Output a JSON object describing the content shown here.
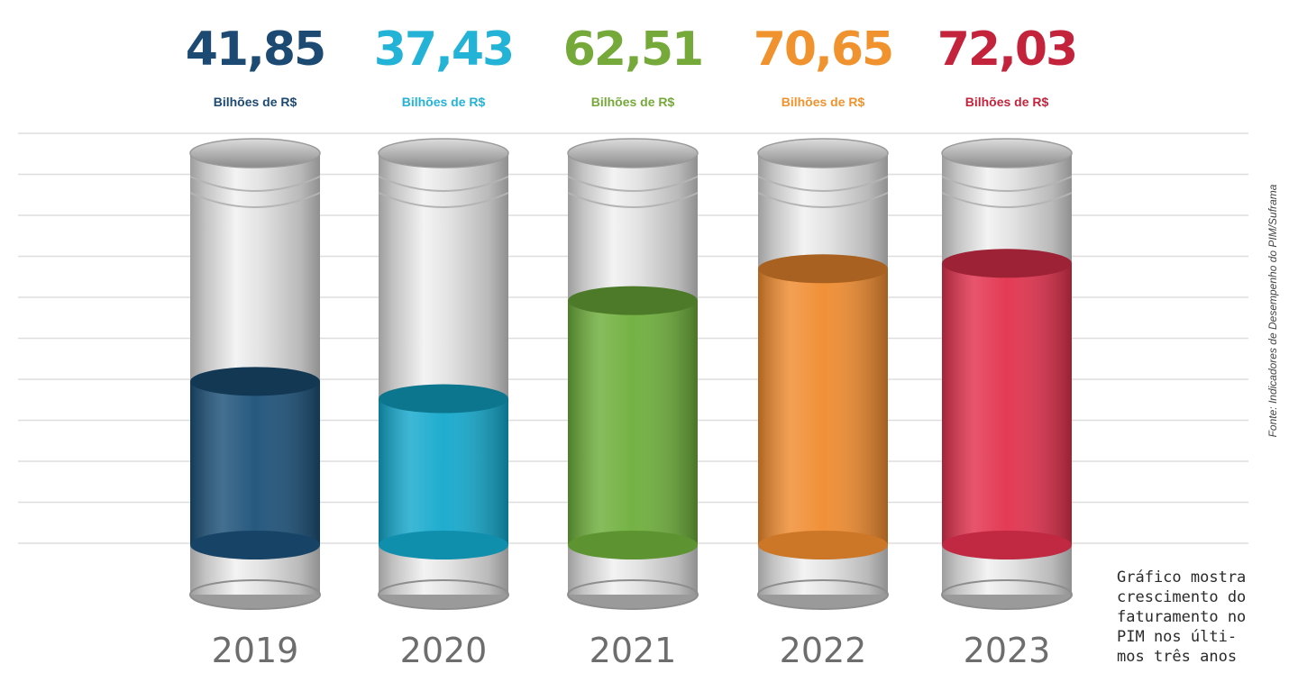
{
  "chart_data": {
    "type": "bar",
    "style": "cylinder-fill",
    "categories": [
      "2019",
      "2020",
      "2021",
      "2022",
      "2023"
    ],
    "values": [
      41.85,
      37.43,
      62.51,
      70.65,
      72.03
    ],
    "value_labels": [
      "41,85",
      "37,43",
      "62,51",
      "70,65",
      "72,03"
    ],
    "unit_label": "Bilhões de R$",
    "colors": [
      "#1b5078",
      "#13a8cc",
      "#6dae3a",
      "#f08b2e",
      "#e2304c"
    ],
    "label_colors": [
      "#1d4a73",
      "#23b3d6",
      "#75a93a",
      "#f0922e",
      "#c3243c"
    ],
    "grid": true,
    "ylim": [
      0,
      85
    ],
    "source": "Fonte: Indicadores de Desempenho do PIM/Suframa"
  },
  "caption": "Gráfico mostra\ncrescimento do\nfaturamento no\nPIM nos últi-\nmos três anos"
}
